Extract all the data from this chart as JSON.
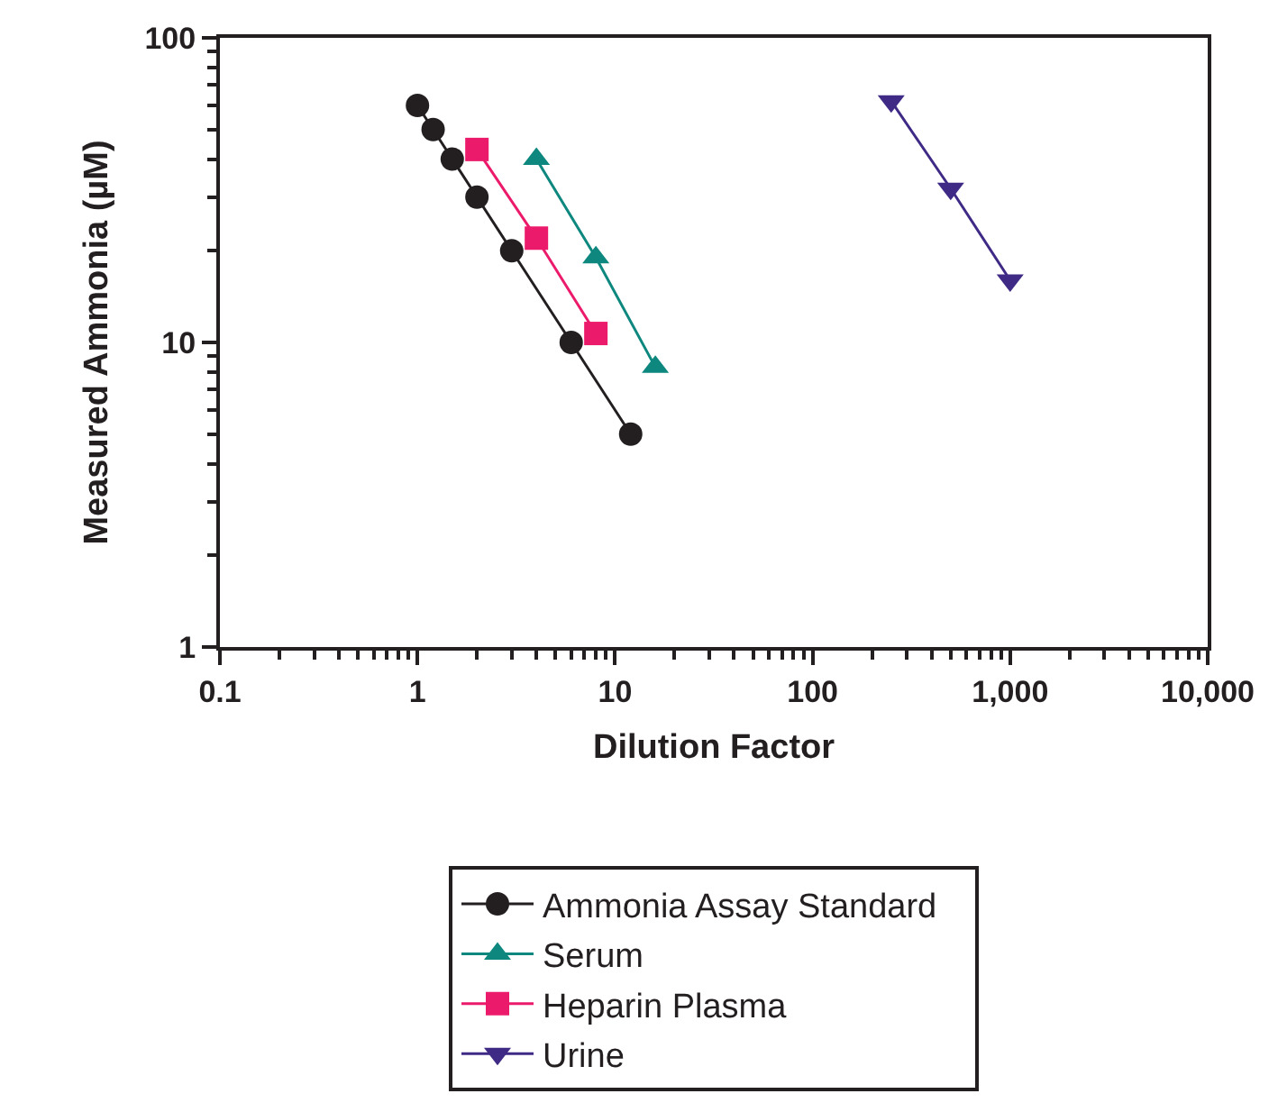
{
  "chart_data": {
    "type": "line",
    "xlabel": "Dilution Factor",
    "ylabel": "Measured Ammonia (µM)",
    "log": "xy",
    "xlim": [
      0.1,
      10000
    ],
    "ylim": [
      1,
      100
    ],
    "xticks": [
      0.1,
      1,
      10,
      100,
      {
        "value": 1000,
        "label": "1,000"
      },
      {
        "value": 10000,
        "label": "10,000"
      }
    ],
    "yticks": [
      1,
      10,
      100
    ],
    "legend": "bottom",
    "line_style": "solid",
    "series": [
      {
        "name": "Ammonia Assay Standard",
        "color": "#231f20",
        "marker": "circle",
        "x": [
          1,
          1.2,
          1.5,
          2,
          3,
          6,
          12
        ],
        "values": [
          60,
          50,
          40,
          30,
          20,
          10,
          5
        ]
      },
      {
        "name": "Serum",
        "color": "#0e877f",
        "marker": "triangle",
        "x": [
          4,
          8,
          16
        ],
        "values": [
          40,
          19,
          8.3
        ]
      },
      {
        "name": "Heparin Plasma",
        "color": "#ec1a6b",
        "marker": "square",
        "x": [
          2,
          4,
          8
        ],
        "values": [
          43,
          22,
          10.7
        ]
      },
      {
        "name": "Urine",
        "color": "#3f2a86",
        "marker": "triangle-down",
        "x": [
          250,
          500,
          1000
        ],
        "values": [
          62,
          32,
          16
        ]
      }
    ]
  }
}
